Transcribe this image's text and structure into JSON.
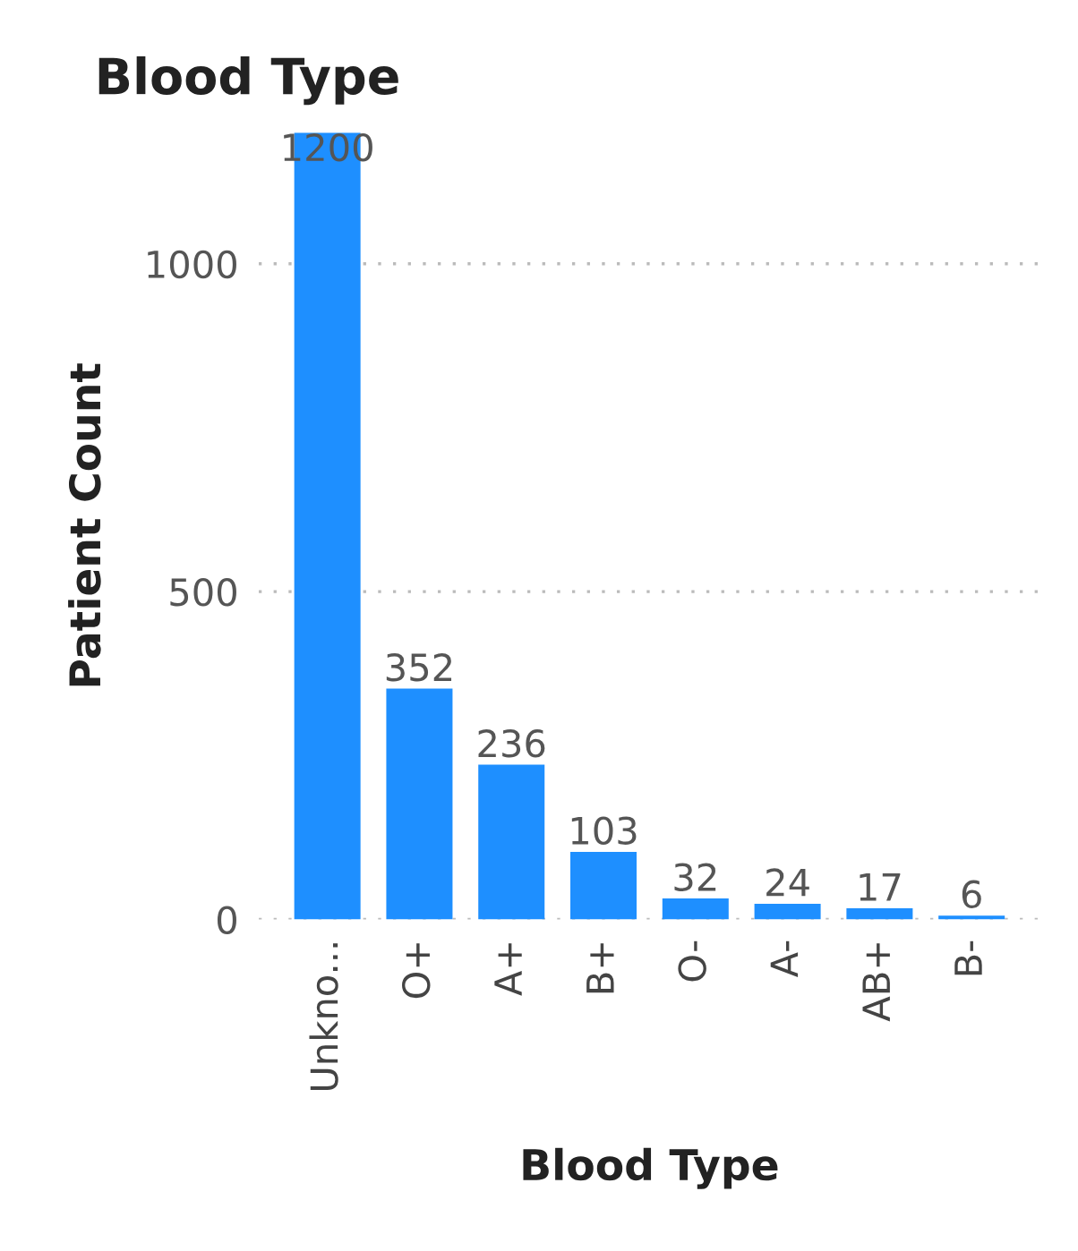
{
  "chart_data": {
    "type": "bar",
    "title": "Blood Type",
    "xlabel": "Blood Type",
    "ylabel": "Patient Count",
    "categories": [
      "Unkno...",
      "O+",
      "A+",
      "B+",
      "O-",
      "A-",
      "AB+",
      "B-"
    ],
    "values": [
      1200,
      352,
      236,
      103,
      32,
      24,
      17,
      6
    ],
    "color": "#1e8fff",
    "ylim": [
      0,
      1200
    ],
    "yticks": [
      0,
      500,
      1000
    ],
    "grid": "y",
    "data_labels": true
  }
}
